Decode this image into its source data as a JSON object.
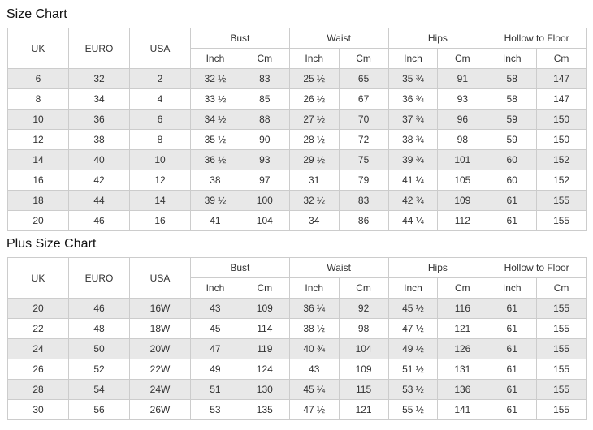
{
  "tables": [
    {
      "title": "Size Chart",
      "fixed_columns": [
        "UK",
        "EURO",
        "USA"
      ],
      "groups": [
        {
          "name": "Bust",
          "sub": [
            "Inch",
            "Cm"
          ]
        },
        {
          "name": "Waist",
          "sub": [
            "Inch",
            "Cm"
          ]
        },
        {
          "name": "Hips",
          "sub": [
            "Inch",
            "Cm"
          ]
        },
        {
          "name": "Hollow to Floor",
          "sub": [
            "Inch",
            "Cm"
          ]
        }
      ],
      "rows": [
        [
          "6",
          "32",
          "2",
          "32 ½",
          "83",
          "25 ½",
          "65",
          "35 ¾",
          "91",
          "58",
          "147"
        ],
        [
          "8",
          "34",
          "4",
          "33 ½",
          "85",
          "26 ½",
          "67",
          "36 ¾",
          "93",
          "58",
          "147"
        ],
        [
          "10",
          "36",
          "6",
          "34 ½",
          "88",
          "27 ½",
          "70",
          "37 ¾",
          "96",
          "59",
          "150"
        ],
        [
          "12",
          "38",
          "8",
          "35 ½",
          "90",
          "28 ½",
          "72",
          "38 ¾",
          "98",
          "59",
          "150"
        ],
        [
          "14",
          "40",
          "10",
          "36 ½",
          "93",
          "29 ½",
          "75",
          "39 ¾",
          "101",
          "60",
          "152"
        ],
        [
          "16",
          "42",
          "12",
          "38",
          "97",
          "31",
          "79",
          "41 ¼",
          "105",
          "60",
          "152"
        ],
        [
          "18",
          "44",
          "14",
          "39 ½",
          "100",
          "32 ½",
          "83",
          "42 ¾",
          "109",
          "61",
          "155"
        ],
        [
          "20",
          "46",
          "16",
          "41",
          "104",
          "34",
          "86",
          "44 ¼",
          "112",
          "61",
          "155"
        ]
      ]
    },
    {
      "title": "Plus Size Chart",
      "fixed_columns": [
        "UK",
        "EURO",
        "USA"
      ],
      "groups": [
        {
          "name": "Bust",
          "sub": [
            "Inch",
            "Cm"
          ]
        },
        {
          "name": "Waist",
          "sub": [
            "Inch",
            "Cm"
          ]
        },
        {
          "name": "Hips",
          "sub": [
            "Inch",
            "Cm"
          ]
        },
        {
          "name": "Hollow to Floor",
          "sub": [
            "Inch",
            "Cm"
          ]
        }
      ],
      "rows": [
        [
          "20",
          "46",
          "16W",
          "43",
          "109",
          "36 ¼",
          "92",
          "45 ½",
          "116",
          "61",
          "155"
        ],
        [
          "22",
          "48",
          "18W",
          "45",
          "114",
          "38 ½",
          "98",
          "47 ½",
          "121",
          "61",
          "155"
        ],
        [
          "24",
          "50",
          "20W",
          "47",
          "119",
          "40 ¾",
          "104",
          "49 ½",
          "126",
          "61",
          "155"
        ],
        [
          "26",
          "52",
          "22W",
          "49",
          "124",
          "43",
          "109",
          "51 ½",
          "131",
          "61",
          "155"
        ],
        [
          "28",
          "54",
          "24W",
          "51",
          "130",
          "45 ¼",
          "115",
          "53 ½",
          "136",
          "61",
          "155"
        ],
        [
          "30",
          "56",
          "26W",
          "53",
          "135",
          "47 ½",
          "121",
          "55 ½",
          "141",
          "61",
          "155"
        ]
      ]
    }
  ]
}
